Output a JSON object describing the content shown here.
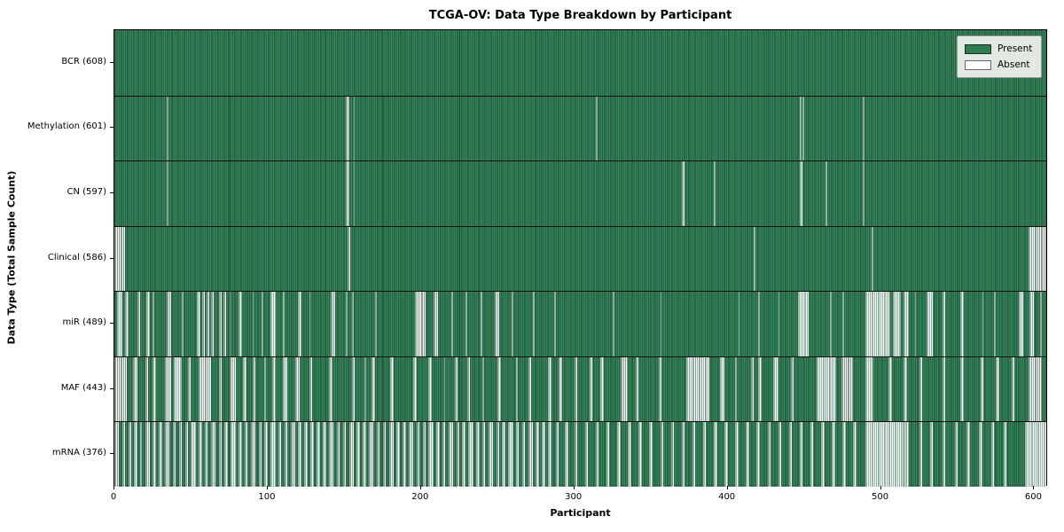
{
  "chart_data": {
    "type": "heatmap",
    "title": "TCGA-OV: Data Type Breakdown by Participant",
    "xlabel": "Participant",
    "ylabel": "Data Type (Total Sample Count)",
    "x_ticks": [
      0,
      100,
      200,
      300,
      400,
      500,
      600
    ],
    "x_max": 609,
    "grid": false,
    "legend_position": "upper right",
    "legend": {
      "entries": [
        {
          "label": "Present",
          "color": "#2e7d4e"
        },
        {
          "label": "Absent",
          "color": "#ffffff"
        }
      ]
    },
    "colors": {
      "present": "#2e7d4e",
      "absent": "#fafafa",
      "bar_edge": "#0d2e1c"
    },
    "rows": [
      {
        "label": "BCR (608)",
        "data_type": "BCR",
        "total_samples": 608,
        "absent_ranges": []
      },
      {
        "label": "Methylation (601)",
        "data_type": "Methylation",
        "total_samples": 601,
        "absent_ranges": [
          [
            34,
            34
          ],
          [
            151,
            152
          ],
          [
            156,
            156
          ],
          [
            314,
            314
          ],
          [
            447,
            447
          ],
          [
            449,
            449
          ],
          [
            488,
            488
          ]
        ]
      },
      {
        "label": "CN (597)",
        "data_type": "CN",
        "total_samples": 597,
        "absent_ranges": [
          [
            34,
            34
          ],
          [
            151,
            152
          ],
          [
            156,
            156
          ],
          [
            370,
            371
          ],
          [
            391,
            391
          ],
          [
            447,
            448
          ],
          [
            464,
            464
          ],
          [
            488,
            488
          ]
        ]
      },
      {
        "label": "Clinical (586)",
        "data_type": "Clinical",
        "total_samples": 586,
        "absent_ranges": [
          [
            0,
            6
          ],
          [
            152,
            153
          ],
          [
            417,
            417
          ],
          [
            494,
            494
          ],
          [
            596,
            607
          ]
        ]
      },
      {
        "label": "miR (489)",
        "data_type": "miR",
        "total_samples": 489,
        "absent_ranges": [
          [
            2,
            4
          ],
          [
            7,
            8
          ],
          [
            15,
            16
          ],
          [
            21,
            22
          ],
          [
            25,
            25
          ],
          [
            34,
            36
          ],
          [
            44,
            44
          ],
          [
            54,
            55
          ],
          [
            57,
            58
          ],
          [
            60,
            61
          ],
          [
            63,
            64
          ],
          [
            68,
            69
          ],
          [
            71,
            72
          ],
          [
            75,
            75
          ],
          [
            81,
            82
          ],
          [
            90,
            90
          ],
          [
            96,
            96
          ],
          [
            102,
            104
          ],
          [
            110,
            110
          ],
          [
            120,
            121
          ],
          [
            127,
            127
          ],
          [
            141,
            143
          ],
          [
            151,
            151
          ],
          [
            155,
            155
          ],
          [
            170,
            170
          ],
          [
            196,
            202
          ],
          [
            208,
            210
          ],
          [
            220,
            220
          ],
          [
            229,
            229
          ],
          [
            239,
            239
          ],
          [
            248,
            250
          ],
          [
            259,
            259
          ],
          [
            273,
            273
          ],
          [
            287,
            287
          ],
          [
            325,
            325
          ],
          [
            356,
            356
          ],
          [
            407,
            407
          ],
          [
            420,
            420
          ],
          [
            433,
            433
          ],
          [
            446,
            452
          ],
          [
            467,
            467
          ],
          [
            475,
            475
          ],
          [
            490,
            505
          ],
          [
            508,
            512
          ],
          [
            515,
            517
          ],
          [
            522,
            522
          ],
          [
            530,
            533
          ],
          [
            540,
            541
          ],
          [
            552,
            553
          ],
          [
            566,
            566
          ],
          [
            574,
            574
          ],
          [
            590,
            592
          ],
          [
            597,
            599
          ],
          [
            604,
            604
          ]
        ]
      },
      {
        "label": "MAF (443)",
        "data_type": "MAF",
        "total_samples": 443,
        "absent_ranges": [
          [
            0,
            7
          ],
          [
            12,
            14
          ],
          [
            20,
            21
          ],
          [
            25,
            26
          ],
          [
            33,
            36
          ],
          [
            39,
            43
          ],
          [
            48,
            49
          ],
          [
            55,
            62
          ],
          [
            68,
            69
          ],
          [
            75,
            78
          ],
          [
            84,
            85
          ],
          [
            90,
            91
          ],
          [
            98,
            98
          ],
          [
            103,
            104
          ],
          [
            110,
            112
          ],
          [
            118,
            120
          ],
          [
            127,
            128
          ],
          [
            140,
            141
          ],
          [
            155,
            156
          ],
          [
            163,
            163
          ],
          [
            168,
            169
          ],
          [
            180,
            181
          ],
          [
            195,
            196
          ],
          [
            205,
            206
          ],
          [
            215,
            215
          ],
          [
            222,
            223
          ],
          [
            230,
            231
          ],
          [
            240,
            240
          ],
          [
            250,
            251
          ],
          [
            262,
            262
          ],
          [
            270,
            271
          ],
          [
            283,
            284
          ],
          [
            290,
            291
          ],
          [
            300,
            301
          ],
          [
            310,
            311
          ],
          [
            317,
            318
          ],
          [
            330,
            334
          ],
          [
            340,
            341
          ],
          [
            355,
            356
          ],
          [
            373,
            387
          ],
          [
            395,
            397
          ],
          [
            405,
            405
          ],
          [
            415,
            416
          ],
          [
            420,
            421
          ],
          [
            430,
            432
          ],
          [
            441,
            442
          ],
          [
            458,
            470
          ],
          [
            474,
            481
          ],
          [
            490,
            494
          ],
          [
            505,
            506
          ],
          [
            515,
            516
          ],
          [
            525,
            526
          ],
          [
            540,
            541
          ],
          [
            552,
            553
          ],
          [
            565,
            566
          ],
          [
            575,
            576
          ],
          [
            585,
            586
          ],
          [
            596,
            604
          ]
        ]
      },
      {
        "label": "mRNA (376)",
        "data_type": "mRNA",
        "total_samples": 376,
        "absent_ranges": [
          [
            0,
            2
          ],
          [
            5,
            6
          ],
          [
            9,
            10
          ],
          [
            13,
            14
          ],
          [
            17,
            17
          ],
          [
            20,
            22
          ],
          [
            25,
            26
          ],
          [
            29,
            30
          ],
          [
            33,
            35
          ],
          [
            38,
            39
          ],
          [
            42,
            43
          ],
          [
            46,
            47
          ],
          [
            50,
            52
          ],
          [
            55,
            56
          ],
          [
            59,
            60
          ],
          [
            63,
            65
          ],
          [
            68,
            69
          ],
          [
            72,
            73
          ],
          [
            76,
            78
          ],
          [
            81,
            82
          ],
          [
            85,
            86
          ],
          [
            89,
            91
          ],
          [
            94,
            95
          ],
          [
            98,
            99
          ],
          [
            102,
            104
          ],
          [
            107,
            108
          ],
          [
            111,
            112
          ],
          [
            115,
            117
          ],
          [
            120,
            121
          ],
          [
            124,
            125
          ],
          [
            128,
            129
          ],
          [
            132,
            133
          ],
          [
            136,
            137
          ],
          [
            140,
            142
          ],
          [
            145,
            146
          ],
          [
            149,
            150
          ],
          [
            153,
            155
          ],
          [
            158,
            159
          ],
          [
            162,
            163
          ],
          [
            166,
            168
          ],
          [
            171,
            172
          ],
          [
            175,
            176
          ],
          [
            179,
            181
          ],
          [
            184,
            185
          ],
          [
            188,
            189
          ],
          [
            192,
            194
          ],
          [
            197,
            198
          ],
          [
            201,
            202
          ],
          [
            205,
            207
          ],
          [
            210,
            211
          ],
          [
            214,
            215
          ],
          [
            218,
            220
          ],
          [
            223,
            224
          ],
          [
            227,
            228
          ],
          [
            231,
            233
          ],
          [
            236,
            237
          ],
          [
            240,
            241
          ],
          [
            244,
            246
          ],
          [
            249,
            250
          ],
          [
            253,
            254
          ],
          [
            257,
            259
          ],
          [
            262,
            263
          ],
          [
            266,
            267
          ],
          [
            270,
            272
          ],
          [
            275,
            276
          ],
          [
            279,
            280
          ],
          [
            283,
            284
          ],
          [
            288,
            289
          ],
          [
            294,
            295
          ],
          [
            300,
            301
          ],
          [
            307,
            308
          ],
          [
            314,
            315
          ],
          [
            321,
            322
          ],
          [
            328,
            329
          ],
          [
            335,
            336
          ],
          [
            342,
            343
          ],
          [
            349,
            350
          ],
          [
            356,
            357
          ],
          [
            363,
            364
          ],
          [
            370,
            371
          ],
          [
            377,
            378
          ],
          [
            384,
            385
          ],
          [
            391,
            392
          ],
          [
            398,
            399
          ],
          [
            405,
            406
          ],
          [
            412,
            413
          ],
          [
            419,
            420
          ],
          [
            426,
            427
          ],
          [
            433,
            434
          ],
          [
            440,
            441
          ],
          [
            447,
            448
          ],
          [
            454,
            455
          ],
          [
            461,
            462
          ],
          [
            468,
            469
          ],
          [
            475,
            476
          ],
          [
            482,
            483
          ],
          [
            490,
            517
          ],
          [
            525,
            526
          ],
          [
            532,
            533
          ],
          [
            540,
            541
          ],
          [
            548,
            549
          ],
          [
            556,
            557
          ],
          [
            564,
            565
          ],
          [
            572,
            573
          ],
          [
            580,
            581
          ],
          [
            594,
            608
          ]
        ]
      }
    ]
  }
}
